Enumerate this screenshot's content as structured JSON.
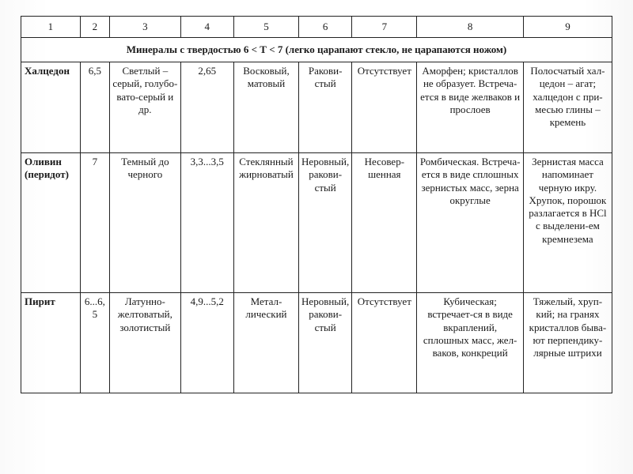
{
  "table": {
    "type": "table",
    "border_color": "#222222",
    "background_color": "#ffffff",
    "text_color": "#1a1a1a",
    "font_family": "Times New Roman",
    "font_size_pt": 10,
    "column_widths_pct": [
      10,
      5,
      12,
      9,
      11,
      9,
      11,
      18,
      15
    ],
    "header_numbers": [
      "1",
      "2",
      "3",
      "4",
      "5",
      "6",
      "7",
      "8",
      "9"
    ],
    "section_title": "Минералы с твердостью 6 < Т < 7 (легко царапают стекло, не царапаются ножом)",
    "rows": [
      {
        "name": "Халцедон",
        "cells": [
          "6,5",
          "Светлый – серый, голубо-вато-серый и др.",
          "2,65",
          "Восковый, матовый",
          "Ракови-стый",
          "Отсутствует",
          "Аморфен; кристаллов не образует. Встреча-ется в виде желваков и прослоев",
          "Полосчатый хал-цедон – агат; халцедон с при-месью глины – кремень"
        ]
      },
      {
        "name": "Оливин (перидот)",
        "cells": [
          "7",
          "Темный до черного",
          "3,3...3,5",
          "Стеклянный жирноватый",
          "Неровный, ракови-стый",
          "Несовер-шенная",
          "Ромбическая. Встреча-ется в виде сплошных зернистых масс, зерна округлые",
          "Зернистая масса напоминает черную икру. Хрупок, порошок разлагается в HCl с выделени-ем кремнезема"
        ]
      },
      {
        "name": "Пирит",
        "cells": [
          "6...6,5",
          "Латунно-желтоватый, золотистый",
          "4,9...5,2",
          "Метал-лический",
          "Неровный, ракови-стый",
          "Отсутствует",
          "Кубическая; встречает-ся в виде вкраплений, сплошных масс, жел-ваков, конкреций",
          "Тяжелый, хруп-кий; на гранях кристаллов быва-ют перпендику-лярные штрихи"
        ]
      }
    ]
  }
}
